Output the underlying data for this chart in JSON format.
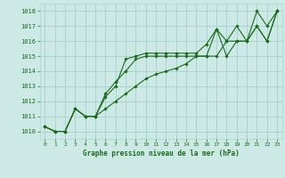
{
  "background_color": "#cce9e5",
  "grid_color": "#aad4ce",
  "line_color": "#1a6b1a",
  "marker_color": "#1a6b1a",
  "title": "Graphe pression niveau de la mer (hPa)",
  "xlim": [
    -0.5,
    23.5
  ],
  "ylim": [
    1009.5,
    1018.5
  ],
  "yticks": [
    1010,
    1011,
    1012,
    1013,
    1014,
    1015,
    1016,
    1017,
    1018
  ],
  "xticks": [
    0,
    1,
    2,
    3,
    4,
    5,
    6,
    7,
    8,
    9,
    10,
    11,
    12,
    13,
    14,
    15,
    16,
    17,
    18,
    19,
    20,
    21,
    22,
    23
  ],
  "series": [
    {
      "x": [
        0,
        1,
        2,
        3,
        4,
        5,
        6,
        7,
        8,
        9,
        10,
        11,
        12,
        13,
        14,
        15,
        16,
        17,
        18,
        19,
        20,
        21,
        22,
        23
      ],
      "y": [
        1010.3,
        1010.0,
        1010.0,
        1011.5,
        1011.0,
        1011.0,
        1012.3,
        1013.0,
        1014.8,
        1015.0,
        1015.2,
        1015.2,
        1015.2,
        1015.2,
        1015.2,
        1015.2,
        1015.8,
        1016.8,
        1016.0,
        1017.0,
        1016.0,
        1018.0,
        1017.0,
        1018.0
      ]
    },
    {
      "x": [
        0,
        1,
        2,
        3,
        4,
        5,
        6,
        7,
        8,
        9,
        10,
        11,
        12,
        13,
        14,
        15,
        16,
        17,
        18,
        19,
        20,
        21,
        22,
        23
      ],
      "y": [
        1010.3,
        1010.0,
        1010.0,
        1011.5,
        1011.0,
        1011.0,
        1012.5,
        1013.3,
        1014.0,
        1014.8,
        1015.0,
        1015.0,
        1015.0,
        1015.0,
        1015.0,
        1015.0,
        1015.0,
        1016.8,
        1015.0,
        1016.0,
        1016.0,
        1017.0,
        1016.0,
        1018.0
      ]
    },
    {
      "x": [
        0,
        1,
        2,
        3,
        4,
        5,
        6,
        7,
        8,
        9,
        10,
        11,
        12,
        13,
        14,
        15,
        16,
        17,
        18,
        19,
        20,
        21,
        22,
        23
      ],
      "y": [
        1010.3,
        1010.0,
        1010.0,
        1011.5,
        1011.0,
        1011.0,
        1011.5,
        1012.0,
        1012.5,
        1013.0,
        1013.5,
        1013.8,
        1014.0,
        1014.2,
        1014.5,
        1015.0,
        1015.0,
        1015.0,
        1016.0,
        1016.0,
        1016.0,
        1017.0,
        1016.0,
        1018.0
      ]
    }
  ]
}
